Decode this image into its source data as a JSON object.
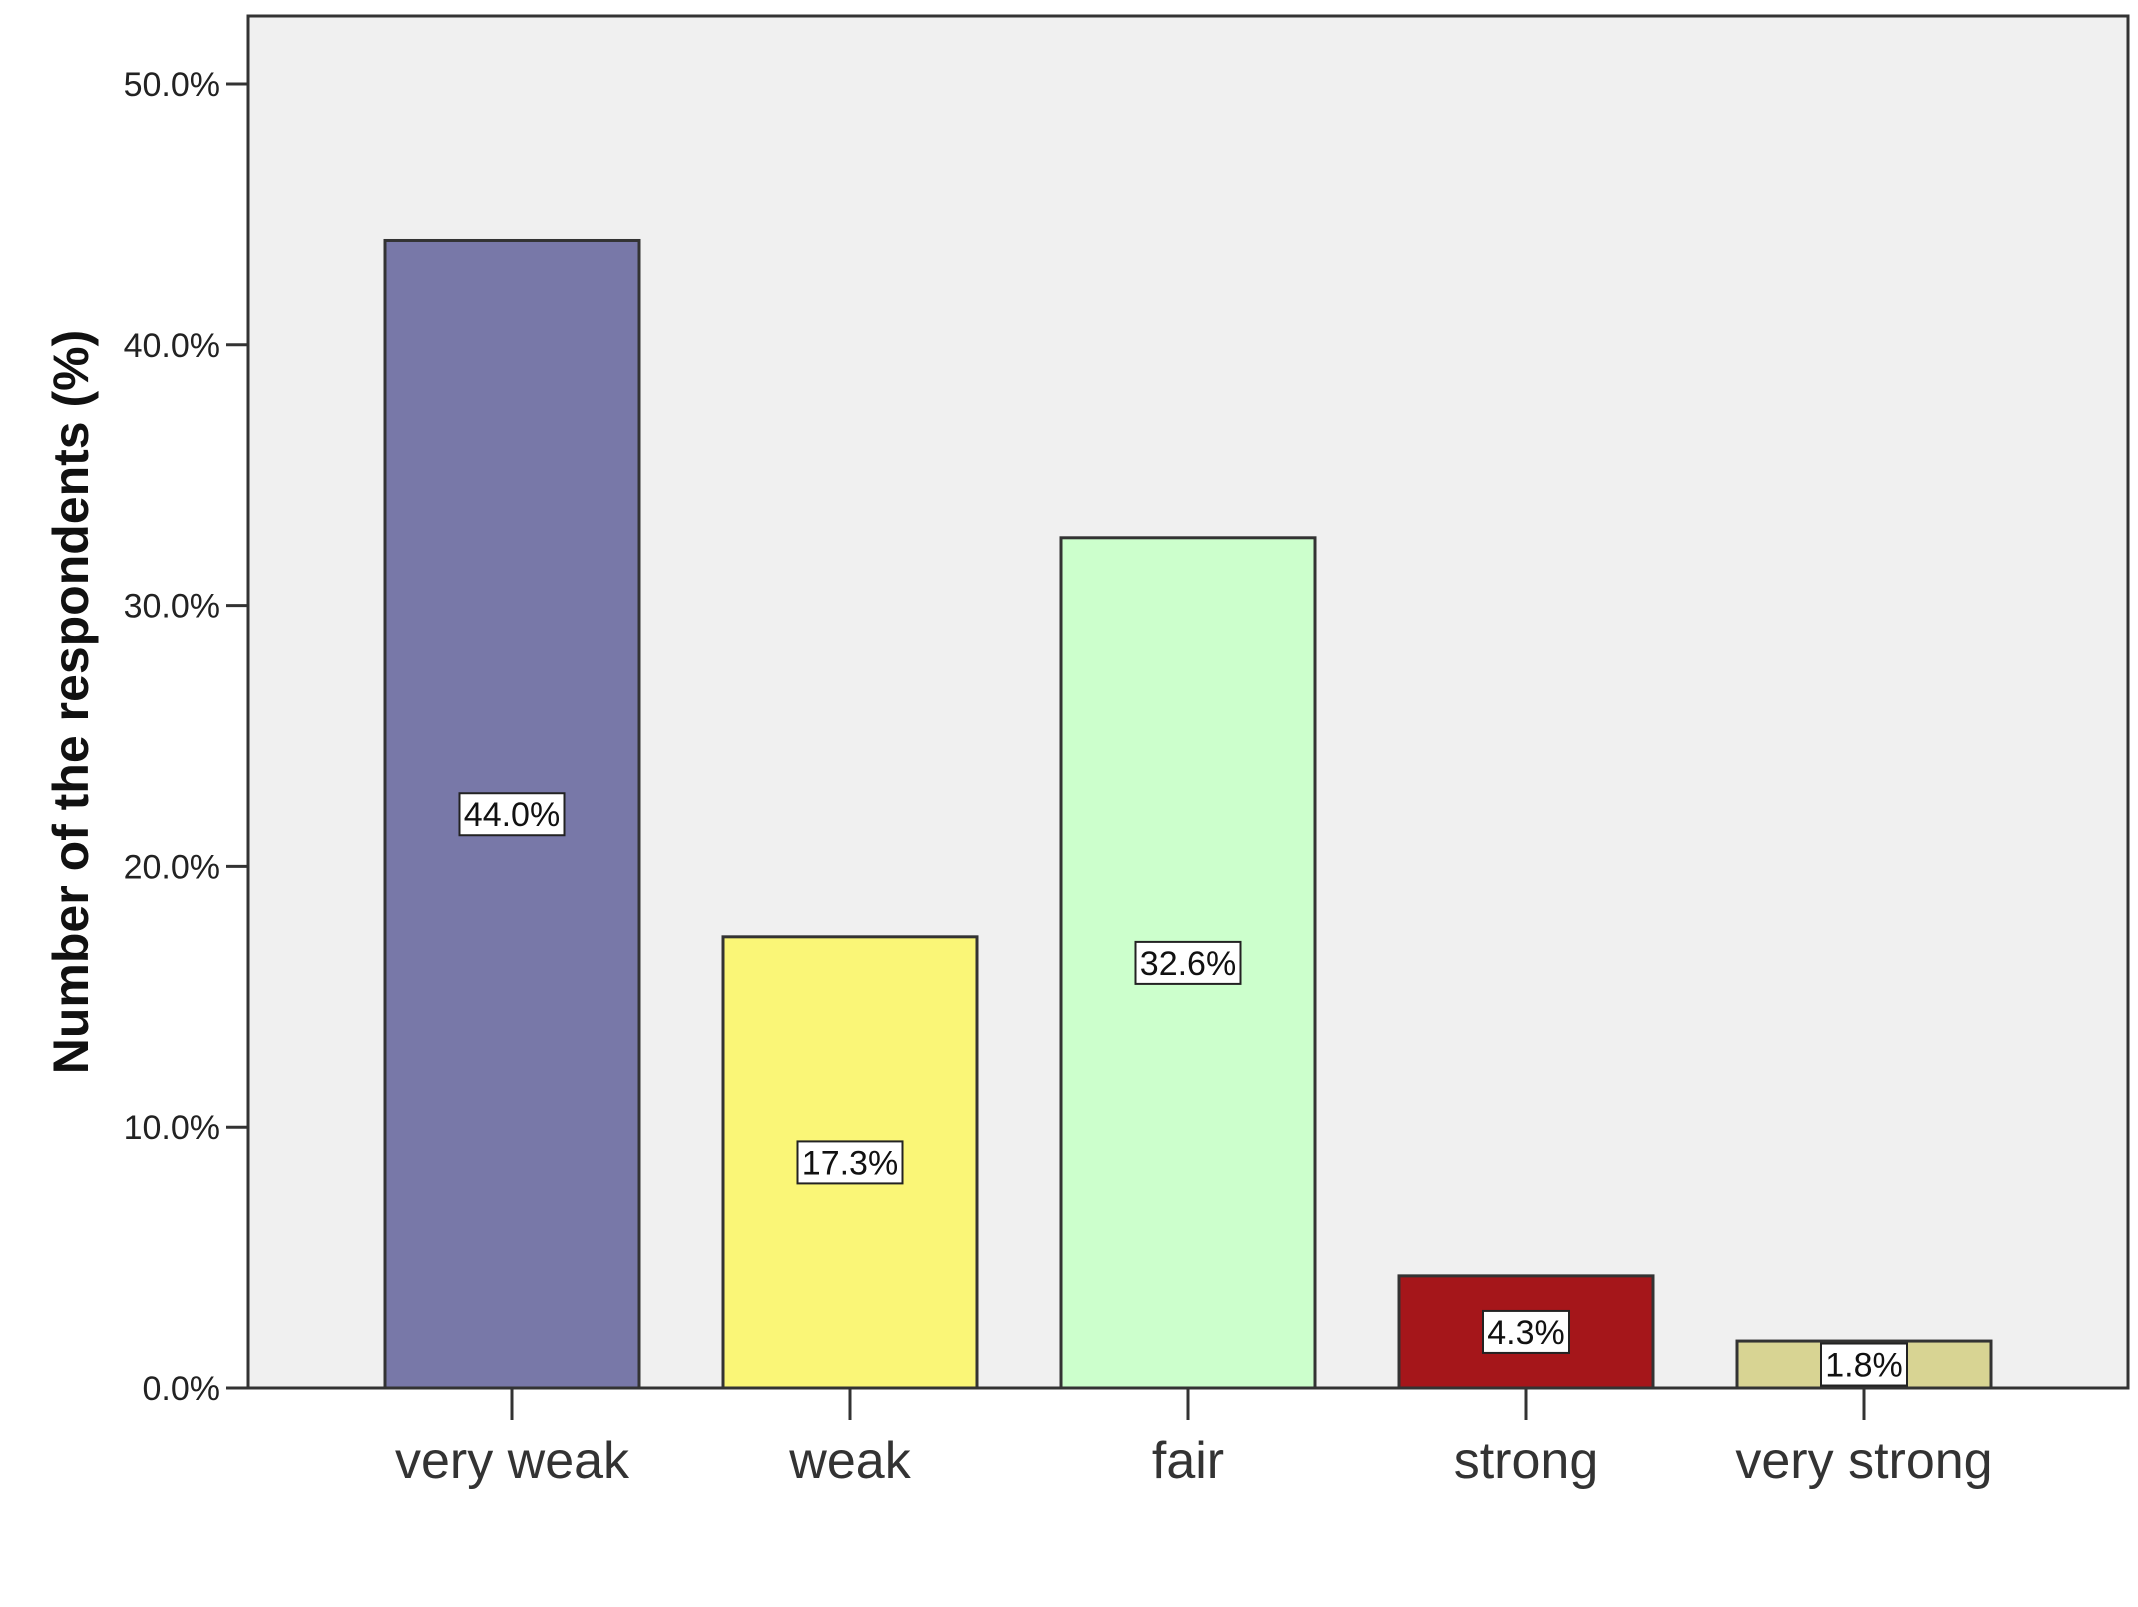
{
  "chart_data": {
    "type": "bar",
    "categories": [
      "very weak",
      "weak",
      "fair",
      "strong",
      "very strong"
    ],
    "values": [
      44.0,
      17.3,
      32.6,
      4.3,
      1.8
    ],
    "data_labels": [
      "44.0%",
      "17.3%",
      "32.6%",
      "4.3%",
      "1.8%"
    ],
    "colors": [
      "#7878a8",
      "#faf677",
      "#ccffcc",
      "#a5161a",
      "#d8d493"
    ],
    "ylabel": "Number of the respondents (%)",
    "xlabel": "",
    "ylim": [
      0,
      50
    ],
    "yticks": [
      0,
      10,
      20,
      30,
      40,
      50
    ],
    "ytick_labels": [
      "0.0%",
      "10.0%",
      "20.0%",
      "30.0%",
      "40.0%",
      "50.0%"
    ],
    "plot_background": "#f0f0f0",
    "grid": false,
    "legend": "none"
  }
}
